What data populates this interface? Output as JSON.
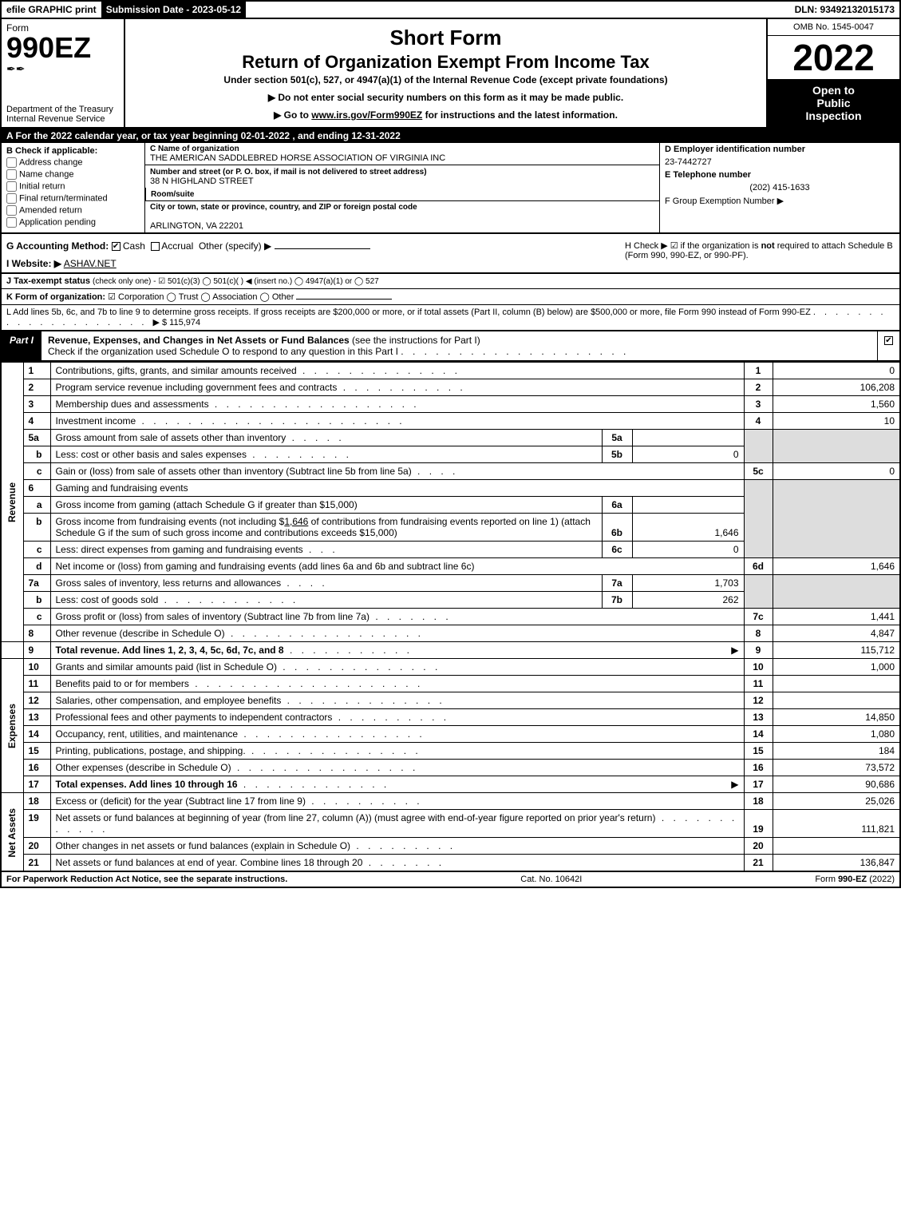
{
  "topbar": {
    "efile": "efile GRAPHIC print",
    "submission": "Submission Date - 2023-05-12",
    "dln": "DLN: 93492132015173"
  },
  "header": {
    "form_word": "Form",
    "form_num": "990EZ",
    "dept": "Department of the Treasury",
    "irs": "Internal Revenue Service",
    "short": "Short Form",
    "return_title": "Return of Organization Exempt From Income Tax",
    "under": "Under section 501(c), 527, or 4947(a)(1) of the Internal Revenue Code (except private foundations)",
    "instr1": "▶ Do not enter social security numbers on this form as it may be made public.",
    "instr2_pre": "▶ Go to ",
    "instr2_link": "www.irs.gov/Form990EZ",
    "instr2_post": " for instructions and the latest information.",
    "omb": "OMB No. 1545-0047",
    "year": "2022",
    "open1": "Open to",
    "open2": "Public",
    "open3": "Inspection"
  },
  "line_a": "A  For the 2022 calendar year, or tax year beginning 02-01-2022 , and ending 12-31-2022",
  "col_b": {
    "hdr_b": "B",
    "hdr": "Check if applicable:",
    "opts": [
      "Address change",
      "Name change",
      "Initial return",
      "Final return/terminated",
      "Amended return",
      "Application pending"
    ]
  },
  "col_c": {
    "name_lbl": "C Name of organization",
    "name_val": "THE AMERICAN SADDLEBRED HORSE ASSOCIATION OF VIRGINIA INC",
    "addr_lbl": "Number and street (or P. O. box, if mail is not delivered to street address)",
    "addr_val": "38 N HIGHLAND STREET",
    "room_lbl": "Room/suite",
    "room_val": "",
    "city_lbl": "City or town, state or province, country, and ZIP or foreign postal code",
    "city_val": "ARLINGTON, VA  22201"
  },
  "col_def": {
    "d_lbl": "D Employer identification number",
    "d_val": "23-7442727",
    "e_lbl": "E Telephone number",
    "e_val": "(202) 415-1633",
    "f_lbl": "F Group Exemption Number  ▶",
    "f_val": ""
  },
  "g": {
    "lbl": "G Accounting Method:",
    "cash": "Cash",
    "accrual": "Accrual",
    "other": "Other (specify) ▶"
  },
  "h": {
    "text1": "H  Check ▶ ☑ if the organization is ",
    "not": "not",
    "text2": " required to attach Schedule B",
    "text3": "(Form 990, 990-EZ, or 990-PF)."
  },
  "i": {
    "lbl": "I Website: ▶",
    "val": "ASHAV.NET"
  },
  "j": {
    "lbl": "J Tax-exempt status",
    "rest": "(check only one) - ☑ 501(c)(3)  ◯ 501(c)(  ) ◀ (insert no.)  ◯ 4947(a)(1) or  ◯ 527"
  },
  "k": {
    "lbl": "K Form of organization:",
    "rest": "☑ Corporation   ◯ Trust   ◯ Association   ◯ Other"
  },
  "l": {
    "text": "L Add lines 5b, 6c, and 7b to line 9 to determine gross receipts. If gross receipts are $200,000 or more, or if total assets (Part II, column (B) below) are $500,000 or more, file Form 990 instead of Form 990-EZ",
    "amount": "▶ $ 115,974"
  },
  "part1": {
    "tab": "Part I",
    "title": "Revenue, Expenses, and Changes in Net Assets or Fund Balances",
    "title_sub": " (see the instructions for Part I)",
    "check_line": "Check if the organization used Schedule O to respond to any question in this Part I"
  },
  "side_labels": {
    "revenue": "Revenue",
    "expenses": "Expenses",
    "netassets": "Net Assets"
  },
  "lines": {
    "l1": {
      "n": "1",
      "d": "Contributions, gifts, grants, and similar amounts received",
      "ln": "1",
      "v": "0"
    },
    "l2": {
      "n": "2",
      "d": "Program service revenue including government fees and contracts",
      "ln": "2",
      "v": "106,208"
    },
    "l3": {
      "n": "3",
      "d": "Membership dues and assessments",
      "ln": "3",
      "v": "1,560"
    },
    "l4": {
      "n": "4",
      "d": "Investment income",
      "ln": "4",
      "v": "10"
    },
    "l5a": {
      "n": "5a",
      "d": "Gross amount from sale of assets other than inventory",
      "in": "5a",
      "iv": ""
    },
    "l5b": {
      "n": "b",
      "d": "Less: cost or other basis and sales expenses",
      "in": "5b",
      "iv": "0"
    },
    "l5c": {
      "n": "c",
      "d": "Gain or (loss) from sale of assets other than inventory (Subtract line 5b from line 5a)",
      "ln": "5c",
      "v": "0"
    },
    "l6": {
      "n": "6",
      "d": "Gaming and fundraising events"
    },
    "l6a": {
      "n": "a",
      "d": "Gross income from gaming (attach Schedule G if greater than $15,000)",
      "in": "6a",
      "iv": ""
    },
    "l6b": {
      "n": "b",
      "d1": "Gross income from fundraising events (not including $",
      "amt": "1,646",
      "d2": " of contributions from fundraising events reported on line 1) (attach Schedule G if the sum of such gross income and contributions exceeds $15,000)",
      "in": "6b",
      "iv": "1,646"
    },
    "l6c": {
      "n": "c",
      "d": "Less: direct expenses from gaming and fundraising events",
      "in": "6c",
      "iv": "0"
    },
    "l6d": {
      "n": "d",
      "d": "Net income or (loss) from gaming and fundraising events (add lines 6a and 6b and subtract line 6c)",
      "ln": "6d",
      "v": "1,646"
    },
    "l7a": {
      "n": "7a",
      "d": "Gross sales of inventory, less returns and allowances",
      "in": "7a",
      "iv": "1,703"
    },
    "l7b": {
      "n": "b",
      "d": "Less: cost of goods sold",
      "in": "7b",
      "iv": "262"
    },
    "l7c": {
      "n": "c",
      "d": "Gross profit or (loss) from sales of inventory (Subtract line 7b from line 7a)",
      "ln": "7c",
      "v": "1,441"
    },
    "l8": {
      "n": "8",
      "d": "Other revenue (describe in Schedule O)",
      "ln": "8",
      "v": "4,847"
    },
    "l9": {
      "n": "9",
      "d": "Total revenue. Add lines 1, 2, 3, 4, 5c, 6d, 7c, and 8",
      "ln": "9",
      "v": "115,712",
      "arrow": "▶"
    },
    "l10": {
      "n": "10",
      "d": "Grants and similar amounts paid (list in Schedule O)",
      "ln": "10",
      "v": "1,000"
    },
    "l11": {
      "n": "11",
      "d": "Benefits paid to or for members",
      "ln": "11",
      "v": ""
    },
    "l12": {
      "n": "12",
      "d": "Salaries, other compensation, and employee benefits",
      "ln": "12",
      "v": ""
    },
    "l13": {
      "n": "13",
      "d": "Professional fees and other payments to independent contractors",
      "ln": "13",
      "v": "14,850"
    },
    "l14": {
      "n": "14",
      "d": "Occupancy, rent, utilities, and maintenance",
      "ln": "14",
      "v": "1,080"
    },
    "l15": {
      "n": "15",
      "d": "Printing, publications, postage, and shipping.",
      "ln": "15",
      "v": "184"
    },
    "l16": {
      "n": "16",
      "d": "Other expenses (describe in Schedule O)",
      "ln": "16",
      "v": "73,572"
    },
    "l17": {
      "n": "17",
      "d": "Total expenses. Add lines 10 through 16",
      "ln": "17",
      "v": "90,686",
      "arrow": "▶"
    },
    "l18": {
      "n": "18",
      "d": "Excess or (deficit) for the year (Subtract line 17 from line 9)",
      "ln": "18",
      "v": "25,026"
    },
    "l19": {
      "n": "19",
      "d": "Net assets or fund balances at beginning of year (from line 27, column (A)) (must agree with end-of-year figure reported on prior year's return)",
      "ln": "19",
      "v": "111,821"
    },
    "l20": {
      "n": "20",
      "d": "Other changes in net assets or fund balances (explain in Schedule O)",
      "ln": "20",
      "v": ""
    },
    "l21": {
      "n": "21",
      "d": "Net assets or fund balances at end of year. Combine lines 18 through 20",
      "ln": "21",
      "v": "136,847"
    }
  },
  "footer": {
    "left": "For Paperwork Reduction Act Notice, see the separate instructions.",
    "mid": "Cat. No. 10642I",
    "right_pre": "Form ",
    "right_bold": "990-EZ",
    "right_post": " (2022)"
  },
  "colors": {
    "black": "#000000",
    "white": "#ffffff",
    "shade": "#dddddd"
  }
}
